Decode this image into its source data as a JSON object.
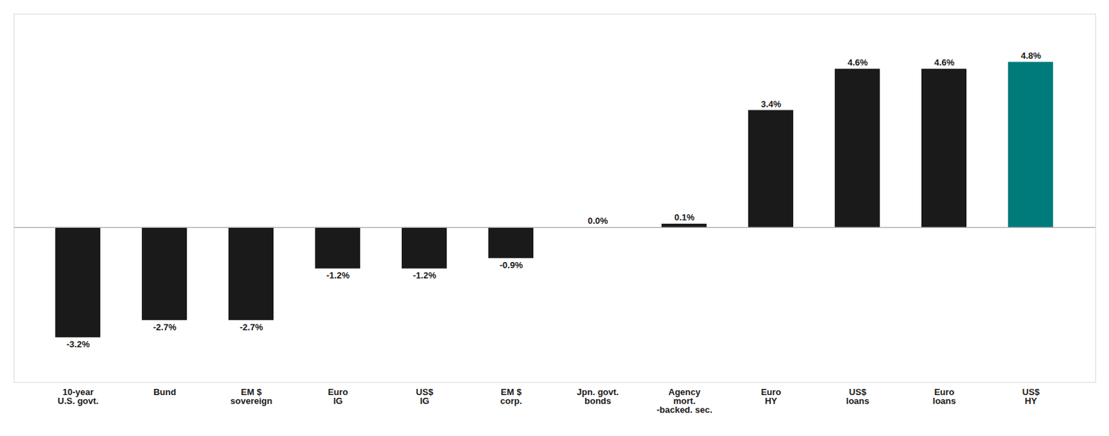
{
  "chart_data": {
    "type": "bar",
    "categories": [
      "10-year\nU.S. govt.",
      "Bund",
      "EM $\nsovereign",
      "Euro\nIG",
      "US$\nIG",
      "EM $\ncorp.",
      "Jpn. govt.\nbonds",
      "Agency\nmort.\n-backed. sec.",
      "Euro\nHY",
      "US$\nloans",
      "Euro\nloans",
      "US$\nHY"
    ],
    "values": [
      -3.2,
      -2.7,
      -2.7,
      -1.2,
      -1.2,
      -0.9,
      0.0,
      0.1,
      3.4,
      4.6,
      4.6,
      4.8
    ],
    "value_labels": [
      "-3.2%",
      "-2.7%",
      "-2.7%",
      "-1.2%",
      "-1.2%",
      "-0.9%",
      "0.0%",
      "0.1%",
      "3.4%",
      "4.6%",
      "4.6%",
      "4.8%"
    ],
    "colors": [
      "#1a1a1a",
      "#1a1a1a",
      "#1a1a1a",
      "#1a1a1a",
      "#1a1a1a",
      "#1a1a1a",
      "#1a1a1a",
      "#1a1a1a",
      "#1a1a1a",
      "#1a1a1a",
      "#1a1a1a",
      "#007b7b"
    ],
    "ylim": [
      -4.5,
      6.2
    ],
    "grid": false,
    "data_labels": true,
    "tick_labels": "x"
  }
}
